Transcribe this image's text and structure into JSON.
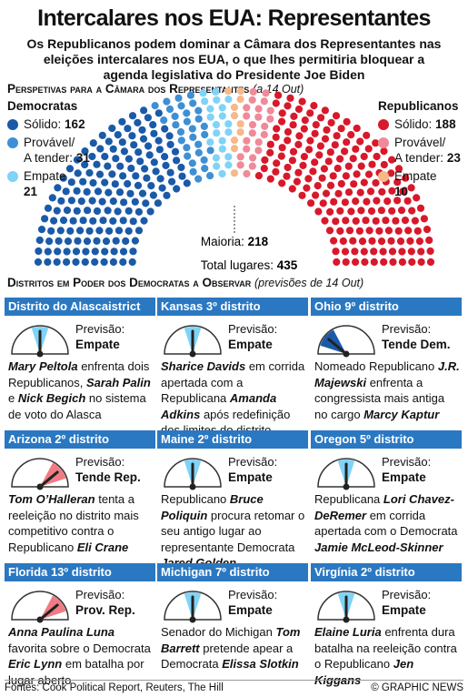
{
  "title": "Intercalares nos EUA: Representantes",
  "subtitle": "Os Republicanos podem dominar a Câmara dos Representantes nas eleições intercalares nos EUA, o que lhes permitiria bloquear a agenda legislativa do Presidente Joe Biden",
  "chart_data": {
    "type": "parliament",
    "title": "Perspetivas para a Câmara dos Representantes",
    "title_note": "(a 14 Out)",
    "groups": [
      {
        "name": "Democratas",
        "side": "left",
        "series": [
          {
            "name": "Sólido:",
            "color": "#1a5aa8",
            "values": [
              162
            ]
          },
          {
            "name": "Provável/\nA tender:",
            "color": "#3f8fd4",
            "values": [
              31
            ]
          },
          {
            "name": "Empate",
            "color": "#7fd3f7",
            "values": [
              21
            ]
          }
        ]
      },
      {
        "name": "Republicanos",
        "side": "right",
        "series": [
          {
            "name": "Sólido:",
            "color": "#d7192b",
            "values": [
              188
            ]
          },
          {
            "name": "Provável/\nA tender:",
            "color": "#ef8a98",
            "values": [
              23
            ]
          },
          {
            "name": "Empate",
            "color": "#f6b98a",
            "values": [
              10
            ]
          }
        ]
      }
    ],
    "majority": {
      "label": "Maioria:",
      "value": 218
    },
    "total": {
      "label": "Total lugares:",
      "value": 435
    }
  },
  "districts": {
    "title": "Distritos em Poder dos Democratas a Observar",
    "title_note": "(previsões de 14 Out)",
    "forecast_label": "Previsão:",
    "items": [
      {
        "name": "Distrito do Alascaistrict",
        "forecast": "Empate",
        "gauge": {
          "lit": "center",
          "color": "#7fd3f7"
        },
        "text": [
          {
            "text": "Mary Peltola",
            "strong": true
          },
          {
            "text": " enfrenta dois Republicanos, "
          },
          {
            "text": "Sarah Palin",
            "strong": true
          },
          {
            "text": " e "
          },
          {
            "text": "Nick Begich",
            "strong": true
          },
          {
            "text": " no sistema de voto do Alasca"
          }
        ]
      },
      {
        "name": "Kansas 3º distrito",
        "forecast": "Empate",
        "gauge": {
          "lit": "center",
          "color": "#7fd3f7"
        },
        "text": [
          {
            "text": "Sharice Davids",
            "strong": true
          },
          {
            "text": " em corrida apertada com a Republicana "
          },
          {
            "text": "Amanda Adkins",
            "strong": true
          },
          {
            "text": " após redefinição dos limites do distrito"
          }
        ]
      },
      {
        "name": "Ohio 9º distrito",
        "forecast": "Tende Dem.",
        "gauge": {
          "lit": "left",
          "color": "#1a5aa8"
        },
        "text": [
          {
            "text": "Nomeado Republicano "
          },
          {
            "text": "J.R. Majewski",
            "strong": true
          },
          {
            "text": " enfrenta a congressista mais antiga no cargo "
          },
          {
            "text": "Marcy Kaptur",
            "strong": true
          }
        ]
      },
      {
        "name": "Arizona 2º distrito",
        "forecast": "Tende Rep.",
        "gauge": {
          "lit": "right",
          "color": "#ef7b84"
        },
        "text": [
          {
            "text": "Tom O’Halleran",
            "strong": true
          },
          {
            "text": " tenta a reeleição no distrito mais competitivo contra o Republicano "
          },
          {
            "text": "Eli Crane",
            "strong": true
          }
        ]
      },
      {
        "name": "Maine 2º distrito",
        "forecast": "Empate",
        "gauge": {
          "lit": "center",
          "color": "#7fd3f7"
        },
        "text": [
          {
            "text": "Republicano "
          },
          {
            "text": "Bruce Poliquin",
            "strong": true
          },
          {
            "text": " procura retomar o seu antigo lugar ao representante Democrata "
          },
          {
            "text": "Jared Golden",
            "strong": true
          }
        ]
      },
      {
        "name": "Oregon 5º distrito",
        "forecast": "Empate",
        "gauge": {
          "lit": "center",
          "color": "#7fd3f7"
        },
        "text": [
          {
            "text": "Republicana "
          },
          {
            "text": "Lori Chavez-DeRemer",
            "strong": true
          },
          {
            "text": " em corrida apertada com o Democrata "
          },
          {
            "text": "Jamie McLeod-Skinner",
            "strong": true
          }
        ]
      },
      {
        "name": "Florida 13º distrito",
        "forecast": "Prov. Rep.",
        "gauge": {
          "lit": "right",
          "color": "#ef7b84"
        },
        "text": [
          {
            "text": "Anna Paulina Luna",
            "strong": true
          },
          {
            "text": " favorita sobre o Democrata "
          },
          {
            "text": "Eric Lynn",
            "strong": true
          },
          {
            "text": " em batalha por lugar aberto"
          }
        ]
      },
      {
        "name": "Michigan 7º distrito",
        "forecast": "Empate",
        "gauge": {
          "lit": "center",
          "color": "#7fd3f7"
        },
        "text": [
          {
            "text": "Senador do Michigan "
          },
          {
            "text": "Tom Barrett",
            "strong": true
          },
          {
            "text": " pretende apear a Democrata "
          },
          {
            "text": "Elissa Slotkin",
            "strong": true
          }
        ]
      },
      {
        "name": "Virgínia 2º distrito",
        "forecast": "Empate",
        "gauge": {
          "lit": "center",
          "color": "#7fd3f7"
        },
        "text": [
          {
            "text": "Elaine Luria",
            "strong": true
          },
          {
            "text": " enfrenta dura batalha na reeleição contra o Republicano "
          },
          {
            "text": "Jen Kiggans",
            "strong": true
          }
        ]
      }
    ]
  },
  "footer": {
    "source": "Fontes: Cook Political Report, Reuters, The Hill",
    "credit": "© GRAPHIC NEWS"
  }
}
